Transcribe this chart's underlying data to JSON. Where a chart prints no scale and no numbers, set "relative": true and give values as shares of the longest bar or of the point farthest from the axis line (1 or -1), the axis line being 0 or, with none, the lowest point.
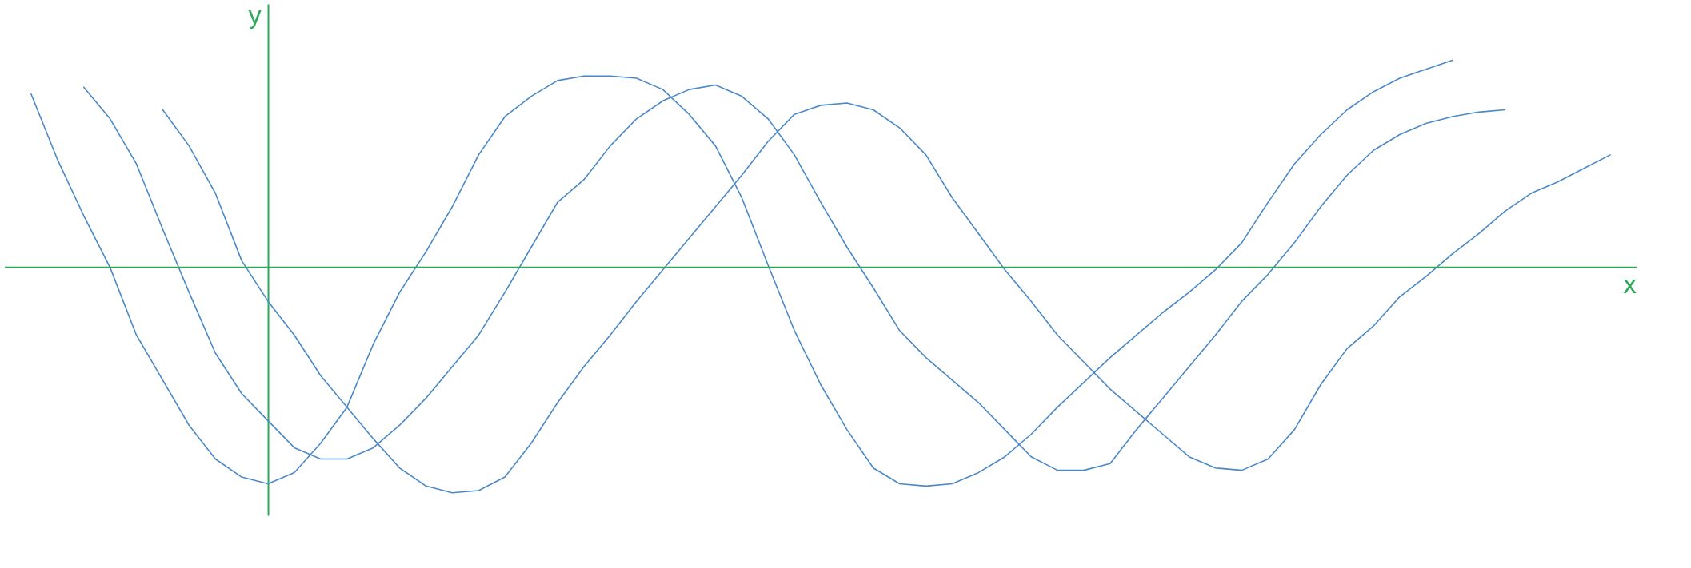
{
  "chart_data": {
    "type": "line",
    "relative": true,
    "xlabel": "x",
    "ylabel": "y",
    "marker": "none",
    "ref_lines": [
      {
        "axis": "y",
        "value": 0,
        "color": "#2ea85a"
      }
    ],
    "line_style": "solid",
    "categories": [
      null,
      null,
      null,
      null,
      null,
      null,
      null,
      null,
      null,
      null,
      null,
      null,
      null,
      null,
      null,
      null,
      null,
      null,
      null,
      null,
      null,
      null,
      null,
      null,
      null,
      null,
      null,
      null,
      null,
      null,
      null,
      null,
      null,
      null,
      null,
      null,
      null,
      null,
      null,
      null,
      null,
      null,
      null,
      null,
      null,
      null,
      null,
      null,
      null,
      null,
      null,
      null,
      null,
      null,
      null,
      null,
      null,
      null,
      null,
      null,
      null
    ],
    "series": [
      {
        "color": "#4a88c7",
        "values": [
          0.77,
          0.48,
          0.23,
          0,
          -0.3,
          -0.5,
          -0.7,
          -0.85,
          -0.93,
          -0.96,
          -0.91,
          -0.78,
          -0.62,
          -0.34,
          -0.11,
          0.07,
          0.27,
          0.5,
          0.67,
          0.76,
          0.83,
          0.85,
          0.85,
          0.84,
          0.79,
          0.68,
          0.54,
          0.31,
          0.01,
          -0.28,
          -0.52,
          -0.72,
          -0.89,
          -0.96,
          -0.97,
          -0.96,
          -0.91,
          -0.84,
          -0.74,
          -0.62,
          -0.51,
          -0.4,
          -0.3,
          -0.2,
          -0.11,
          -0.01,
          0.11,
          0.29,
          0.46,
          0.59,
          0.7,
          0.78,
          0.84,
          0.88,
          0.92,
          null,
          null,
          null,
          null,
          null,
          null
        ]
      },
      {
        "color": "#4a88c7",
        "values": [
          null,
          null,
          0.8,
          0.66,
          0.46,
          0.17,
          -0.11,
          -0.38,
          -0.56,
          -0.68,
          -0.8,
          -0.85,
          -0.85,
          -0.8,
          -0.7,
          -0.58,
          -0.44,
          -0.3,
          -0.11,
          0.09,
          0.29,
          0.39,
          0.54,
          0.66,
          0.74,
          0.79,
          0.81,
          0.76,
          0.66,
          0.5,
          0.29,
          0.09,
          -0.09,
          -0.28,
          -0.4,
          -0.5,
          -0.6,
          -0.72,
          -0.84,
          -0.9,
          -0.9,
          -0.87,
          -0.72,
          -0.58,
          -0.44,
          -0.3,
          -0.15,
          -0.03,
          0.11,
          0.27,
          0.41,
          0.52,
          0.59,
          0.64,
          0.67,
          0.69,
          0.7,
          null,
          null,
          null,
          null
        ]
      },
      {
        "color": "#4a88c7",
        "values": [
          null,
          null,
          null,
          null,
          null,
          0.7,
          0.54,
          0.33,
          0.03,
          -0.15,
          -0.3,
          -0.48,
          -0.62,
          -0.76,
          -0.89,
          -0.97,
          -1.0,
          -0.99,
          -0.93,
          -0.78,
          -0.6,
          -0.44,
          -0.3,
          -0.15,
          -0.01,
          0.13,
          0.27,
          0.41,
          0.56,
          0.68,
          0.72,
          0.73,
          0.7,
          0.62,
          0.5,
          0.31,
          0.15,
          -0.01,
          -0.15,
          -0.3,
          -0.42,
          -0.54,
          -0.64,
          -0.74,
          -0.84,
          -0.89,
          -0.9,
          -0.85,
          -0.72,
          -0.52,
          -0.36,
          -0.26,
          -0.13,
          -0.04,
          0.06,
          0.15,
          0.25,
          0.33,
          0.38,
          0.44,
          0.5
        ]
      }
    ]
  }
}
